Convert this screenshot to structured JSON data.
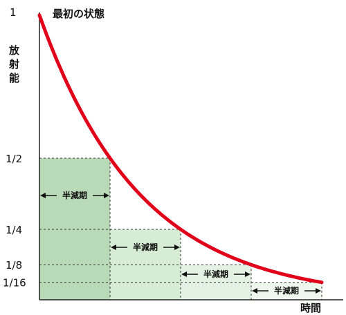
{
  "chart_data": {
    "type": "line",
    "title": "",
    "xlabel": "時間",
    "ylabel": [
      "放",
      "射",
      "能"
    ],
    "initial_state_label": "最初の状態",
    "y_ticks": [
      {
        "label": "1",
        "value": 1
      },
      {
        "label": "1/2",
        "value": 0.5
      },
      {
        "label": "1/4",
        "value": 0.25
      },
      {
        "label": "1/8",
        "value": 0.125
      },
      {
        "label": "1/16",
        "value": 0.0625
      }
    ],
    "half_life_label": "半減期",
    "half_life_periods": [
      1,
      2,
      3,
      4
    ],
    "x_range": [
      0,
      4
    ],
    "series": [
      {
        "values_note": "",
        "x": [
          0,
          1,
          2,
          3,
          4
        ],
        "y": [
          1,
          0.5,
          0.25,
          0.125,
          0.0625
        ]
      }
    ],
    "colors": {
      "curve": "#e0001a",
      "block_1": "#b9dab7",
      "block_2": "#d7ecd5",
      "block_3": "#e3f2e2",
      "block_4": "#edf7ec",
      "axis": "#222222"
    }
  }
}
